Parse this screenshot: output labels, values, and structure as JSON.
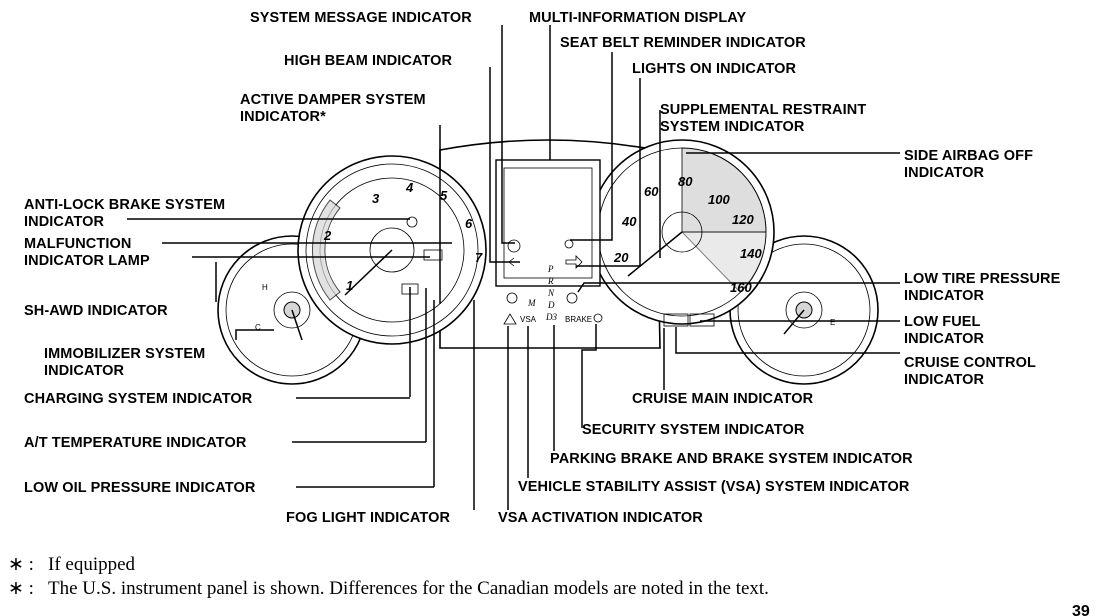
{
  "labels": {
    "system_message": "SYSTEM MESSAGE INDICATOR",
    "multi_info": "MULTI-INFORMATION DISPLAY",
    "seat_belt": "SEAT BELT REMINDER INDICATOR",
    "high_beam": "HIGH BEAM INDICATOR",
    "lights_on": "LIGHTS ON INDICATOR",
    "active_damper_1": "ACTIVE DAMPER SYSTEM",
    "active_damper_2": "INDICATOR*",
    "srs_1": "SUPPLEMENTAL RESTRAINT",
    "srs_2": "SYSTEM INDICATOR",
    "side_airbag_1": "SIDE AIRBAG OFF",
    "side_airbag_2": "INDICATOR",
    "abs_1": "ANTI-LOCK BRAKE SYSTEM",
    "abs_2": "INDICATOR",
    "mil_1": "MALFUNCTION",
    "mil_2": "INDICATOR LAMP",
    "shawd": "SH-AWD INDICATOR",
    "low_tire_1": "LOW TIRE PRESSURE",
    "low_tire_2": "INDICATOR",
    "low_fuel_1": "LOW FUEL",
    "low_fuel_2": "INDICATOR",
    "cruise_ctrl_1": "CRUISE CONTROL",
    "cruise_ctrl_2": "INDICATOR",
    "immobilizer_1": "IMMOBILIZER SYSTEM",
    "immobilizer_2": "INDICATOR",
    "charging": "CHARGING SYSTEM INDICATOR",
    "cruise_main": "CRUISE MAIN INDICATOR",
    "security": "SECURITY SYSTEM INDICATOR",
    "at_temp": "A/T TEMPERATURE INDICATOR",
    "parking_brake": "PARKING BRAKE AND BRAKE SYSTEM INDICATOR",
    "low_oil": "LOW OIL PRESSURE INDICATOR",
    "vsa_system": "VEHICLE STABILITY ASSIST (VSA) SYSTEM INDICATOR",
    "fog": "FOG LIGHT INDICATOR",
    "vsa_activation": "VSA ACTIVATION INDICATOR"
  },
  "footnotes": [
    {
      "mark": "∗ :",
      "text": "If equipped"
    },
    {
      "mark": "∗ :",
      "text": "The U.S. instrument panel is shown. Differences for the Canadian models are noted in the text."
    }
  ],
  "page_number": "39",
  "panel": {
    "tach_numbers": [
      "1",
      "2",
      "3",
      "4",
      "5",
      "6",
      "7"
    ],
    "speed_numbers": [
      "20",
      "40",
      "60",
      "80",
      "100",
      "120",
      "140",
      "160"
    ],
    "gear_letters": [
      "P",
      "R",
      "N",
      "D",
      "D3"
    ],
    "vsa_text": "VSA",
    "brake_text": "BRAKE",
    "m_text": "M"
  }
}
